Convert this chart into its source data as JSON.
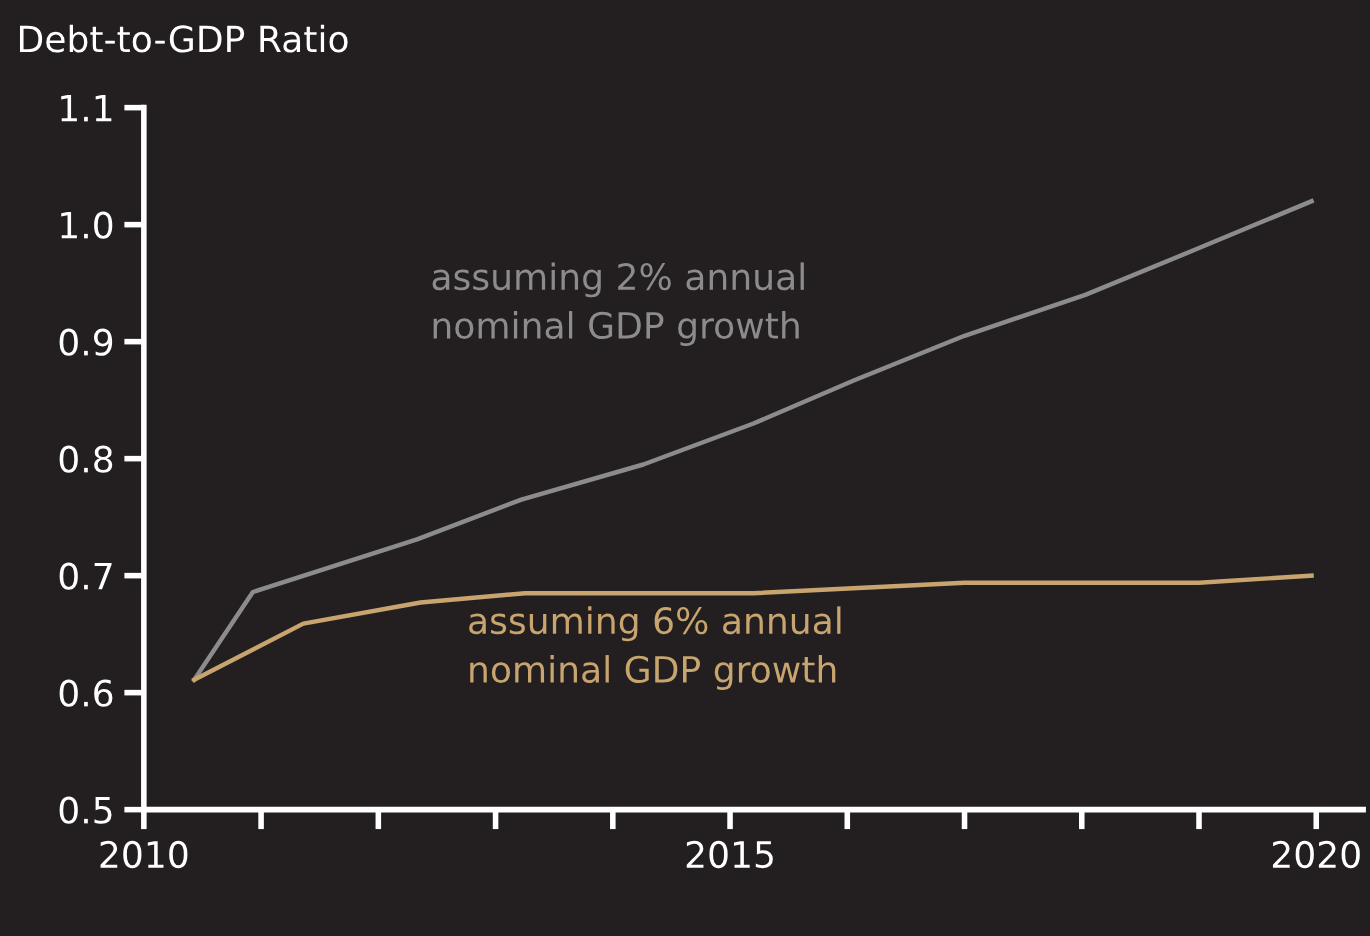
{
  "chart_data": {
    "type": "line",
    "title": "Debt-to-GDP Ratio",
    "xlim": [
      2010,
      2020.4
    ],
    "ylim": [
      0.5,
      1.1
    ],
    "xticks": [
      2010,
      {
        "value": 2011,
        "label": null
      },
      {
        "value": 2012,
        "label": null
      },
      {
        "value": 2013,
        "label": null
      },
      {
        "value": 2014,
        "label": null
      },
      2015,
      {
        "value": 2016,
        "label": null
      },
      {
        "value": 2017,
        "label": null
      },
      {
        "value": 2018,
        "label": null
      },
      {
        "value": 2019,
        "label": null
      },
      2020
    ],
    "yticks": [
      {
        "value": 0.5,
        "label": "0.5"
      },
      {
        "value": 0.6,
        "label": "0.6"
      },
      {
        "value": 0.7,
        "label": "0.7"
      },
      {
        "value": 0.8,
        "label": "0.8"
      },
      {
        "value": 0.9,
        "label": "0.9"
      },
      {
        "value": 1.0,
        "label": "1.0"
      },
      {
        "value": 1.1,
        "label": "1.1"
      }
    ],
    "grid": false,
    "legend": false,
    "series": [
      {
        "color": "#8c8c8c",
        "x": [
          2010.43,
          2010.93,
          2012.33,
          2013.22,
          2014.26,
          2015.2,
          2016.06,
          2017.0,
          2018.03,
          2019.0,
          2019.96
        ],
        "values": [
          0.611,
          0.686,
          0.731,
          0.765,
          0.795,
          0.83,
          0.867,
          0.905,
          0.94,
          0.98,
          1.02
        ]
      },
      {
        "color": "#c8a46e",
        "x": [
          2010.43,
          2011.36,
          2012.36,
          2013.25,
          2015.2,
          2017.0,
          2019.0,
          2019.96
        ],
        "values": [
          0.611,
          0.659,
          0.677,
          0.685,
          0.685,
          0.694,
          0.694,
          0.7
        ]
      }
    ],
    "annotations": [
      "assuming 2% annual\nnominal GDP growth",
      "assuming 6% annual\nnominal GDP growth"
    ]
  }
}
